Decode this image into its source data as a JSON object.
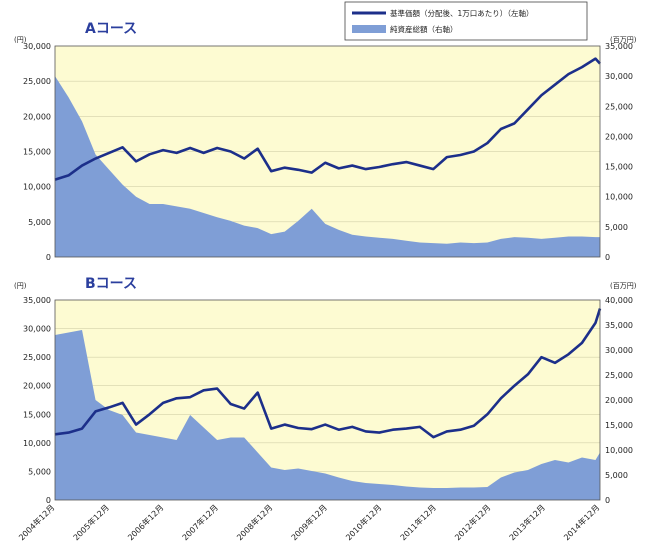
{
  "legend": {
    "nav_label": "基準価額（分配後、1万口あたり）（左軸）",
    "assets_label": "純資産総額（右軸）"
  },
  "colors": {
    "plot_bg": "#fdfbd2",
    "nav_line": "#1c2f8a",
    "assets_fill": "#7f9ed6",
    "title": "#2b3f9e"
  },
  "x_ticks": [
    "2004年12月",
    "2005年12月",
    "2006年12月",
    "2007年12月",
    "2008年12月",
    "2009年12月",
    "2010年12月",
    "2011年12月",
    "2012年12月",
    "2013年12月",
    "2014年12月"
  ],
  "chart_data": [
    {
      "type": "area",
      "title": "Aコース",
      "left_unit": "(円)",
      "right_unit": "(百万円)",
      "left_axis": {
        "min": 0,
        "max": 30000,
        "ticks": [
          "0",
          "5,000",
          "10,000",
          "15,000",
          "20,000",
          "25,000",
          "30,000"
        ]
      },
      "right_axis": {
        "min": 0,
        "max": 35000,
        "ticks": [
          "0",
          "5,000",
          "10,000",
          "15,000",
          "20,000",
          "25,000",
          "30,000",
          "35,000"
        ]
      },
      "grid": true,
      "legend_position": "top-right",
      "x": [
        "2004-12",
        "2005-03",
        "2005-06",
        "2005-09",
        "2005-12",
        "2006-03",
        "2006-06",
        "2006-09",
        "2006-12",
        "2007-03",
        "2007-06",
        "2007-09",
        "2007-12",
        "2008-03",
        "2008-06",
        "2008-09",
        "2008-12",
        "2009-03",
        "2009-06",
        "2009-09",
        "2009-12",
        "2010-03",
        "2010-06",
        "2010-09",
        "2010-12",
        "2011-03",
        "2011-06",
        "2011-09",
        "2011-12",
        "2012-03",
        "2012-06",
        "2012-09",
        "2012-12",
        "2013-03",
        "2013-06",
        "2013-09",
        "2013-12",
        "2014-03",
        "2014-06",
        "2014-09",
        "2014-12",
        "2015-01"
      ],
      "series": [
        {
          "name": "基準価額（分配後、1万口あたり）（左軸）",
          "axis": "left",
          "kind": "line",
          "values": [
            11000,
            11600,
            13000,
            14000,
            14800,
            15600,
            13600,
            14600,
            15200,
            14800,
            15500,
            14800,
            15500,
            15000,
            14000,
            15400,
            12200,
            12700,
            12400,
            12000,
            13400,
            12600,
            13000,
            12500,
            12800,
            13200,
            13500,
            13000,
            12500,
            14200,
            14500,
            15000,
            16200,
            18200,
            19000,
            21000,
            23000,
            24500,
            26000,
            27000,
            28200,
            27500
          ]
        },
        {
          "name": "純資産総額（右軸）",
          "axis": "right",
          "kind": "area",
          "values": [
            30000,
            26500,
            22500,
            17000,
            14500,
            12000,
            10000,
            8800,
            8800,
            8400,
            8000,
            7300,
            6600,
            6000,
            5200,
            4800,
            3800,
            4200,
            6000,
            8000,
            5500,
            4500,
            3700,
            3400,
            3200,
            3000,
            2700,
            2400,
            2300,
            2200,
            2400,
            2300,
            2400,
            3000,
            3300,
            3200,
            3000,
            3200,
            3400,
            3400,
            3300,
            3300
          ]
        }
      ]
    },
    {
      "type": "area",
      "title": "Bコース",
      "left_unit": "(円)",
      "right_unit": "(百万円)",
      "left_axis": {
        "min": 0,
        "max": 35000,
        "ticks": [
          "0",
          "5,000",
          "10,000",
          "15,000",
          "20,000",
          "25,000",
          "30,000",
          "35,000"
        ]
      },
      "right_axis": {
        "min": 0,
        "max": 40000,
        "ticks": [
          "0",
          "5,000",
          "10,000",
          "15,000",
          "20,000",
          "25,000",
          "30,000",
          "35,000",
          "40,000"
        ]
      },
      "grid": true,
      "legend_position": "none",
      "x": [
        "2004-12",
        "2005-03",
        "2005-06",
        "2005-09",
        "2005-12",
        "2006-03",
        "2006-06",
        "2006-09",
        "2006-12",
        "2007-03",
        "2007-06",
        "2007-09",
        "2007-12",
        "2008-03",
        "2008-06",
        "2008-09",
        "2008-12",
        "2009-03",
        "2009-06",
        "2009-09",
        "2009-12",
        "2010-03",
        "2010-06",
        "2010-09",
        "2010-12",
        "2011-03",
        "2011-06",
        "2011-09",
        "2011-12",
        "2012-03",
        "2012-06",
        "2012-09",
        "2012-12",
        "2013-03",
        "2013-06",
        "2013-09",
        "2013-12",
        "2014-03",
        "2014-06",
        "2014-09",
        "2014-12",
        "2015-01"
      ],
      "series": [
        {
          "name": "基準価額（分配後、1万口あたり）（左軸）",
          "axis": "left",
          "kind": "line",
          "values": [
            11500,
            11800,
            12500,
            15500,
            16200,
            17000,
            13200,
            15000,
            17000,
            17800,
            18000,
            19200,
            19500,
            16800,
            16000,
            18800,
            12500,
            13200,
            12600,
            12400,
            13200,
            12300,
            12800,
            12000,
            11800,
            12300,
            12500,
            12800,
            11000,
            12000,
            12300,
            13000,
            15000,
            17800,
            20000,
            22000,
            25000,
            24000,
            25500,
            27500,
            31000,
            33500
          ]
        },
        {
          "name": "純資産総額（右軸）",
          "axis": "right",
          "kind": "area",
          "values": [
            33000,
            33500,
            34000,
            20000,
            18000,
            17000,
            13500,
            13000,
            12500,
            12000,
            17000,
            14500,
            12000,
            12500,
            12500,
            9500,
            6500,
            6000,
            6300,
            5800,
            5300,
            4500,
            3800,
            3400,
            3200,
            3000,
            2700,
            2500,
            2400,
            2400,
            2500,
            2500,
            2600,
            4500,
            5500,
            6000,
            7200,
            8000,
            7500,
            8500,
            8000,
            9500
          ]
        }
      ]
    }
  ]
}
